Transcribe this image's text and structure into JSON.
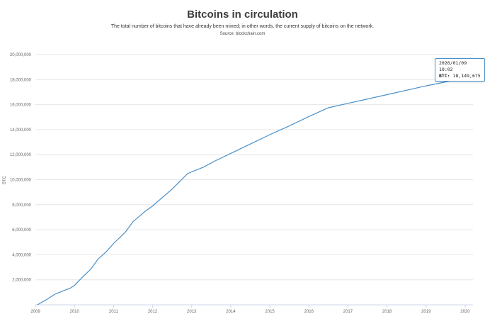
{
  "title": "Bitcoins in circulation",
  "subtitle": "The total number of bitcoins that have already been mined; in other words, the current supply of bitcoins on the network.",
  "source": "Source: blockchain.com",
  "tooltip": {
    "date": "2020/01/09 10:02",
    "series_label": "BTC:",
    "value_text": "18,149,675"
  },
  "colors": {
    "line": "#4a90c8",
    "grid": "#e6e6e6"
  },
  "chart_data": {
    "type": "line",
    "title": "Bitcoins in circulation",
    "subtitle": "The total number of bitcoins that have already been mined; in other words, the current supply of bitcoins on the network.",
    "ylabel": "BTC",
    "xlabel": "",
    "ylim": [
      0,
      20000000
    ],
    "xlim": [
      2009,
      2020.2
    ],
    "grid": true,
    "legend": "none",
    "y_ticks": [
      2000000,
      4000000,
      6000000,
      8000000,
      10000000,
      12000000,
      14000000,
      16000000,
      18000000,
      20000000
    ],
    "y_tick_labels": [
      "2,000,000",
      "4,000,000",
      "6,000,000",
      "8,000,000",
      "10,000,000",
      "12,000,000",
      "14,000,000",
      "16,000,000",
      "18,000,000",
      "20,000,000"
    ],
    "x_ticks": [
      2009,
      2010,
      2011,
      2012,
      2013,
      2014,
      2015,
      2016,
      2017,
      2018,
      2019,
      2020
    ],
    "x_tick_labels": [
      "2009",
      "2010",
      "2011",
      "2012",
      "2013",
      "2014",
      "2015",
      "2016",
      "2017",
      "2018",
      "2019",
      "2020"
    ],
    "series": [
      {
        "x": [
          2009.05,
          2009.3,
          2009.5,
          2009.7,
          2009.9,
          2010.0,
          2010.2,
          2010.4,
          2010.5,
          2010.6,
          2010.8,
          2011.0,
          2011.3,
          2011.5,
          2011.8,
          2012.0,
          2012.5,
          2012.9,
          2013.3,
          2013.6,
          2014.0,
          2014.5,
          2015.0,
          2015.5,
          2016.0,
          2016.5,
          2017.0,
          2018.0,
          2019.0,
          2020.03
        ],
        "values": [
          0,
          450000,
          850000,
          1100000,
          1350000,
          1550000,
          2200000,
          2800000,
          3200000,
          3650000,
          4200000,
          4900000,
          5800000,
          6650000,
          7450000,
          7900000,
          9250000,
          10500000,
          11000000,
          11500000,
          12100000,
          12850000,
          13600000,
          14300000,
          15050000,
          15750000,
          16100000,
          16800000,
          17500000,
          18149675
        ]
      }
    ]
  }
}
